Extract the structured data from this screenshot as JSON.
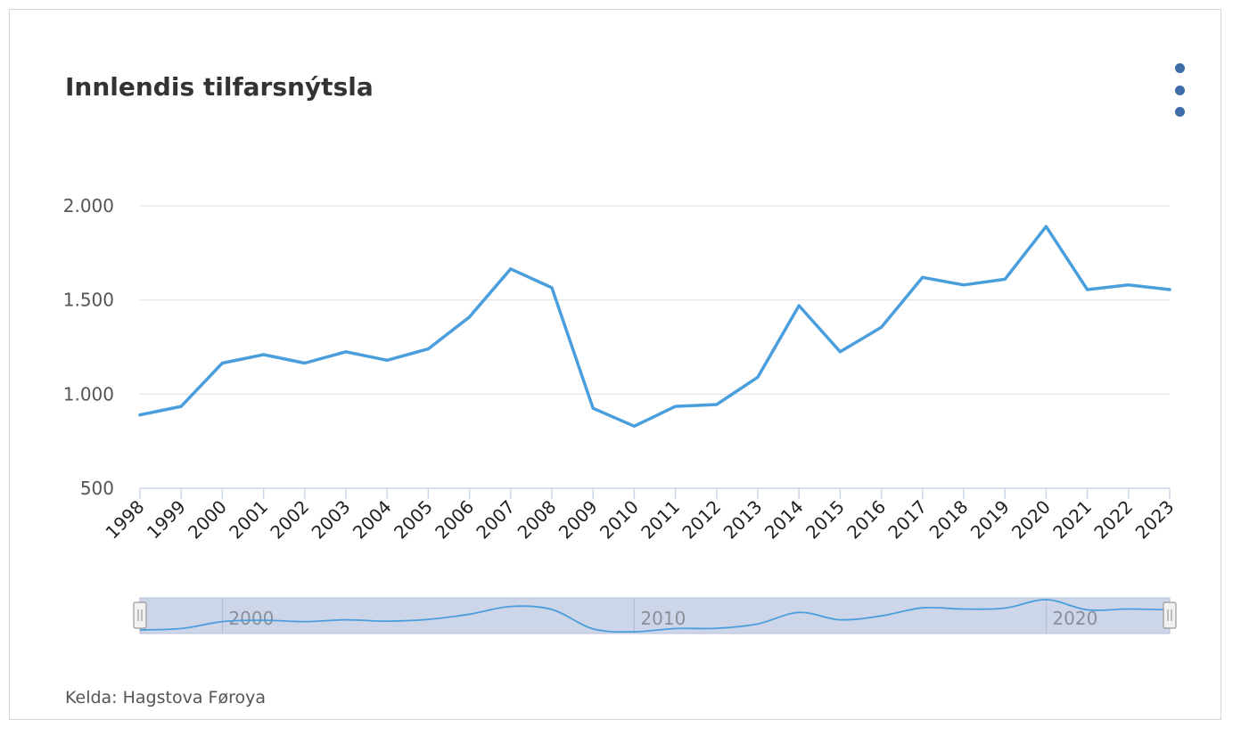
{
  "title": "Innlendis tilfarsnýtsla",
  "source": "Kelda: Hagstova Føroya",
  "menu_icon": "more-vertical-icon",
  "colors": {
    "line": "#4a9edc",
    "grid": "#e3e3e3",
    "axis": "#ccd6eb",
    "navigator_fill": "#cdd5e8",
    "menu": "#3e6da8"
  },
  "chart_data": {
    "type": "line",
    "title": "Innlendis tilfarsnýtsla",
    "x": [
      "1998",
      "1999",
      "2000",
      "2001",
      "2002",
      "2003",
      "2004",
      "2005",
      "2006",
      "2007",
      "2008",
      "2009",
      "2010",
      "2011",
      "2012",
      "2013",
      "2014",
      "2015",
      "2016",
      "2017",
      "2018",
      "2019",
      "2020",
      "2021",
      "2022",
      "2023"
    ],
    "series": [
      {
        "values": [
          890,
          935,
          1165,
          1210,
          1165,
          1225,
          1180,
          1240,
          1410,
          1665,
          1565,
          925,
          830,
          935,
          945,
          1090,
          1470,
          1225,
          1355,
          1620,
          1580,
          1610,
          1890,
          1555,
          1580,
          1555
        ]
      }
    ],
    "yticks": [
      "500",
      "1.000",
      "1.500",
      "2.000"
    ],
    "ytick_values": [
      500,
      1000,
      1500,
      2000
    ],
    "ylim": [
      500,
      2000
    ],
    "grid": true,
    "legend": "none",
    "navigator": {
      "range": [
        "1998",
        "2023"
      ],
      "labels": [
        "2000",
        "2010",
        "2020"
      ]
    }
  }
}
